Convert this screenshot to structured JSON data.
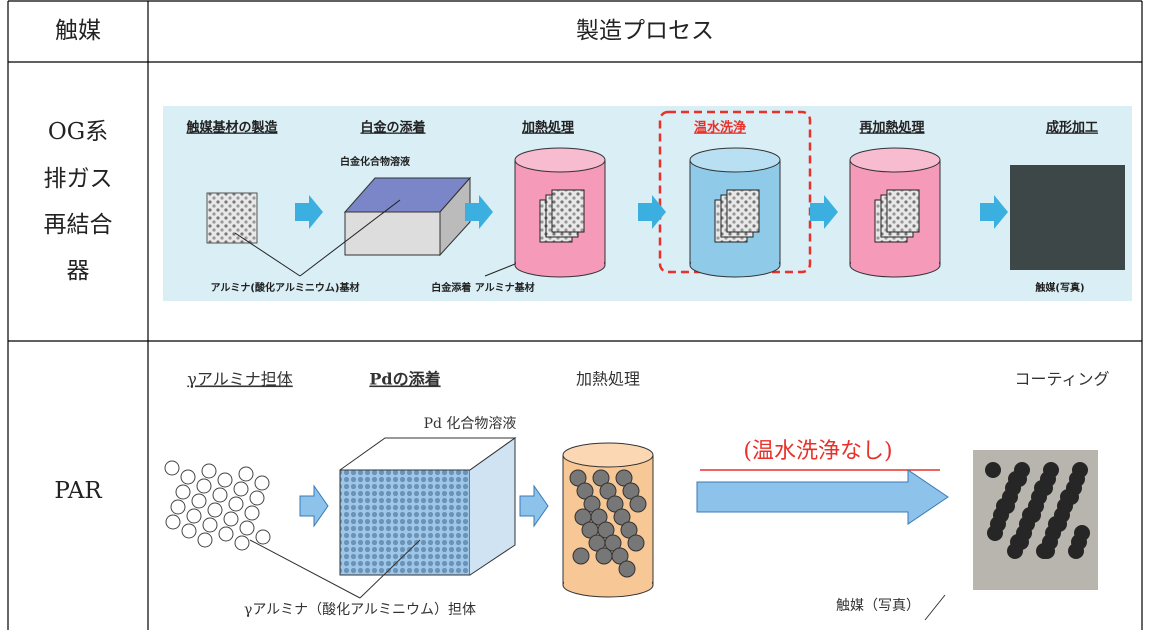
{
  "table": {
    "header": [
      "触媒",
      "製造プロセス"
    ],
    "rows": [
      {
        "label": [
          "OG系",
          "排ガス",
          "再結合",
          "器"
        ],
        "diagram": {
          "steps": [
            "触媒基材の製造",
            "白金の添着",
            "加熱処理",
            "温水洗浄",
            "再加熱処理",
            "成形加工"
          ],
          "annotations": [
            "白金化合物溶液",
            "アルミナ(酸化アルミニウム)基材",
            "白金添着 アルミナ基材",
            "触媒(写真)"
          ]
        }
      },
      {
        "label": [
          "PAR"
        ],
        "diagram": {
          "steps": [
            "γアルミナ担体",
            "Pdの添着",
            "加熱処理",
            "コーティング"
          ],
          "annotations": [
            "Pd 化合物溶液",
            "(温水洗浄なし)",
            "γアルミナ（酸化アルミニウム）担体",
            "触媒（写真）"
          ]
        }
      }
    ]
  }
}
